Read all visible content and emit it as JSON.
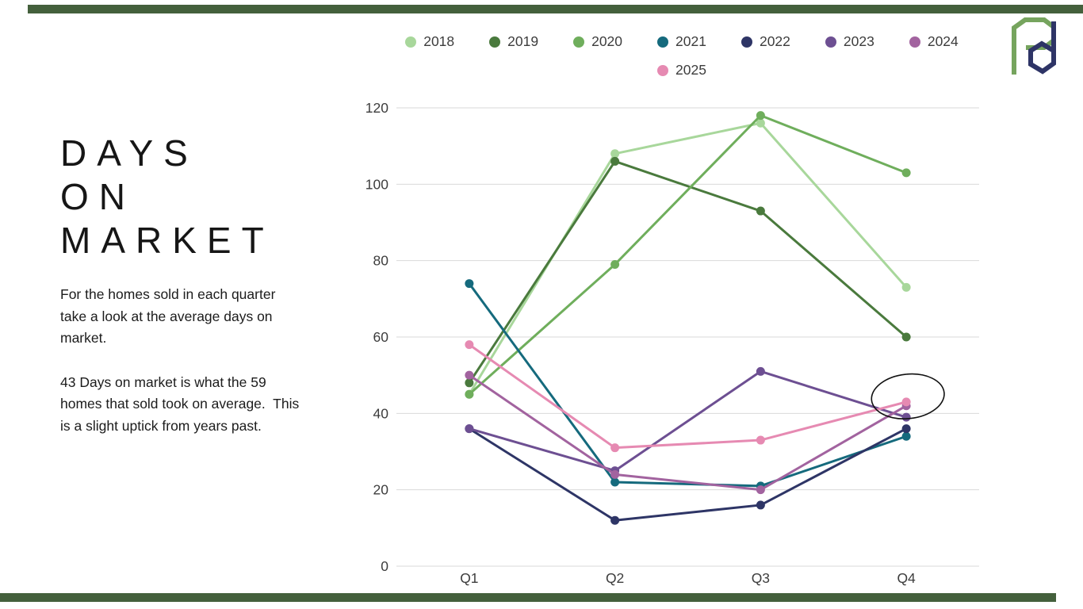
{
  "page": {
    "title_lines": [
      "DAYS",
      "ON",
      "MARKET"
    ],
    "paragraph1": "For the homes sold in each quarter take a look at the average days on market.",
    "paragraph2": "43 Days on market is what the 59 homes that sold took on average.  This is a slight uptick from years past."
  },
  "colors": {
    "accent_bar": "#44603c",
    "logo_green": "#76a45e",
    "logo_navy": "#2e3466",
    "gridline": "#d9d9d9",
    "axis_text": "#3d3d3d",
    "annotation": "#111111"
  },
  "chart_data": {
    "type": "line",
    "title": "",
    "xlabel": "",
    "ylabel": "",
    "categories": [
      "Q1",
      "Q2",
      "Q3",
      "Q4"
    ],
    "series": [
      {
        "name": "2018",
        "color": "#a8d79b",
        "values": [
          45,
          108,
          116,
          73
        ]
      },
      {
        "name": "2019",
        "color": "#4a7a3d",
        "values": [
          48,
          106,
          93,
          60
        ]
      },
      {
        "name": "2020",
        "color": "#6fae5c",
        "values": [
          45,
          79,
          118,
          103
        ]
      },
      {
        "name": "2021",
        "color": "#156a7d",
        "values": [
          74,
          22,
          21,
          34
        ]
      },
      {
        "name": "2022",
        "color": "#2e3566",
        "values": [
          36,
          12,
          16,
          36
        ]
      },
      {
        "name": "2023",
        "color": "#6d4f92",
        "values": [
          36,
          25,
          51,
          39
        ]
      },
      {
        "name": "2024",
        "color": "#a2639f",
        "values": [
          50,
          24,
          20,
          42
        ]
      },
      {
        "name": "2025",
        "color": "#e68ab2",
        "values": [
          58,
          31,
          33,
          43
        ]
      }
    ],
    "ylim": [
      0,
      120
    ],
    "yticks": [
      0,
      20,
      40,
      60,
      80,
      100,
      120
    ],
    "grid": true,
    "legend_position": "top",
    "legend_rows": [
      [
        "2018",
        "2019",
        "2020",
        "2021",
        "2022",
        "2023",
        "2024"
      ],
      [
        "2025"
      ]
    ],
    "annotation": {
      "type": "hand-drawn-circle",
      "series": "2025",
      "category": "Q4",
      "value": 43
    }
  }
}
